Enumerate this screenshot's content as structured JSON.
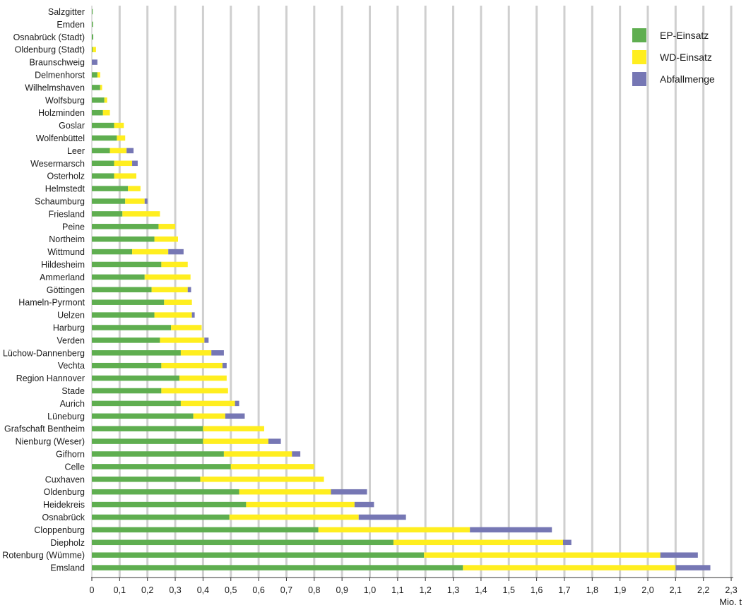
{
  "chart_data": {
    "type": "bar",
    "orientation": "horizontal",
    "stacked": true,
    "unit": "Mio. t",
    "xlim": [
      0,
      2.3
    ],
    "xticks": [
      "0",
      "0,1",
      "0,2",
      "0,3",
      "0,4",
      "0,5",
      "0,6",
      "0,7",
      "0,8",
      "0,9",
      "1,0",
      "1,1",
      "1,2",
      "1,3",
      "1,4",
      "1,5",
      "1,6",
      "1,7",
      "1,8",
      "1,9",
      "2,0",
      "2,1",
      "2,2",
      "2,3"
    ],
    "xtick_values": [
      0,
      0.1,
      0.2,
      0.3,
      0.4,
      0.5,
      0.6,
      0.7,
      0.8,
      0.9,
      1.0,
      1.1,
      1.2,
      1.3,
      1.4,
      1.5,
      1.6,
      1.7,
      1.8,
      1.9,
      2.0,
      2.1,
      2.2,
      2.3
    ],
    "grid": "vertical",
    "legend_position": "top-right",
    "categories": [
      "Salzgitter",
      "Emden",
      "Osnabrück (Stadt)",
      "Oldenburg (Stadt)",
      "Braunschweig",
      "Delmenhorst",
      "Wilhelmshaven",
      "Wolfsburg",
      "Holzminden",
      "Goslar",
      "Wolfenbüttel",
      "Leer",
      "Wesermarsch",
      "Osterholz",
      "Helmstedt",
      "Schaumburg",
      "Friesland",
      "Peine",
      "Northeim",
      "Wittmund",
      "Hildesheim",
      "Ammerland",
      "Göttingen",
      "Hameln-Pyrmont",
      "Uelzen",
      "Harburg",
      "Verden",
      "Lüchow-Dannenberg",
      "Vechta",
      "Region Hannover",
      "Stade",
      "Aurich",
      "Lüneburg",
      "Grafschaft Bentheim",
      "Nienburg (Weser)",
      "Gifhorn",
      "Celle",
      "Cuxhaven",
      "Oldenburg",
      "Heidekreis",
      "Osnabrück",
      "Cloppenburg",
      "Diepholz",
      "Rotenburg (Wümme)",
      "Emsland"
    ],
    "series": [
      {
        "name": "EP-Einsatz",
        "color": "#5fae50",
        "values": [
          0.003,
          0.004,
          0.005,
          0.003,
          0.0,
          0.02,
          0.03,
          0.045,
          0.04,
          0.08,
          0.09,
          0.065,
          0.08,
          0.08,
          0.13,
          0.12,
          0.11,
          0.24,
          0.225,
          0.145,
          0.25,
          0.19,
          0.215,
          0.26,
          0.225,
          0.285,
          0.245,
          0.32,
          0.25,
          0.315,
          0.25,
          0.32,
          0.365,
          0.4,
          0.4,
          0.475,
          0.5,
          0.39,
          0.53,
          0.555,
          0.495,
          0.815,
          1.085,
          1.195,
          1.335
        ]
      },
      {
        "name": "WD-Einsatz",
        "color": "#ffee1f",
        "values": [
          0.0,
          0.0,
          0.0,
          0.012,
          0.0,
          0.01,
          0.007,
          0.01,
          0.025,
          0.035,
          0.03,
          0.06,
          0.065,
          0.08,
          0.045,
          0.07,
          0.135,
          0.06,
          0.085,
          0.13,
          0.095,
          0.165,
          0.13,
          0.1,
          0.135,
          0.11,
          0.16,
          0.11,
          0.22,
          0.17,
          0.24,
          0.195,
          0.115,
          0.22,
          0.235,
          0.245,
          0.3,
          0.445,
          0.33,
          0.39,
          0.465,
          0.545,
          0.61,
          0.85,
          0.765
        ]
      },
      {
        "name": "Abfallmenge",
        "color": "#7677b4",
        "values": [
          0.0,
          0.0,
          0.0,
          0.0,
          0.02,
          0.0,
          0.0,
          0.0,
          0.0,
          0.0,
          0.0,
          0.025,
          0.02,
          0.0,
          0.0,
          0.01,
          0.0,
          0.0,
          0.0,
          0.055,
          0.0,
          0.0,
          0.012,
          0.0,
          0.01,
          0.0,
          0.015,
          0.045,
          0.015,
          0.0,
          0.0,
          0.015,
          0.07,
          0.0,
          0.045,
          0.03,
          0.0,
          0.0,
          0.13,
          0.07,
          0.17,
          0.295,
          0.03,
          0.135,
          0.125
        ]
      }
    ]
  }
}
